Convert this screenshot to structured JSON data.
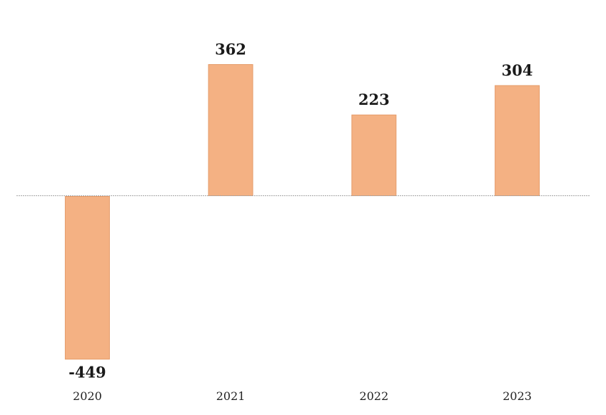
{
  "chart_data": {
    "type": "bar",
    "title": "",
    "xlabel": "",
    "ylabel": "",
    "categories": [
      "2020",
      "2021",
      "2022",
      "2023"
    ],
    "values": [
      -449,
      362,
      223,
      304
    ],
    "value_labels": [
      "-449",
      "362",
      "223",
      "304"
    ],
    "ylim": [
      -449,
      362
    ],
    "grid": false,
    "legend": "none",
    "y_axis_visible": false,
    "zero_line": true,
    "colors": {
      "bar_fill": "#F4B183",
      "bar_stroke": "#E59B69",
      "zero_line": "#A6A6A6",
      "label_text": "#1a1a1a"
    }
  }
}
